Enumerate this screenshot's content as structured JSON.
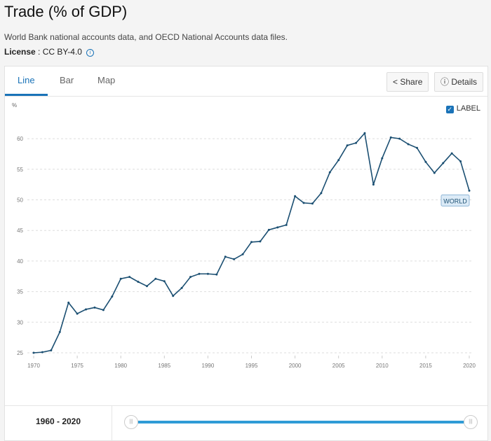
{
  "header": {
    "title": "Trade (% of GDP)",
    "source": "World Bank national accounts data, and OECD National Accounts data files.",
    "license_label": "License",
    "license_value": ": CC BY-4.0"
  },
  "tabs": [
    {
      "label": "Line"
    },
    {
      "label": "Bar"
    },
    {
      "label": "Map"
    }
  ],
  "buttons": {
    "share": "Share",
    "details": "Details"
  },
  "label_toggle": "LABEL",
  "footer": {
    "range": "1960 - 2020"
  },
  "colors": {
    "line": "#1b4f72",
    "accent": "#1a73b8"
  },
  "chart_data": {
    "type": "line",
    "title": "Trade (% of GDP)",
    "ylabel": "%",
    "xlabel": "",
    "ylim": [
      24,
      62
    ],
    "yticks": [
      25,
      30,
      35,
      40,
      45,
      50,
      55,
      60
    ],
    "xticks": [
      1970,
      1975,
      1980,
      1985,
      1990,
      1995,
      2000,
      2005,
      2010,
      2015,
      2020
    ],
    "series": [
      {
        "name": "WORLD",
        "x": [
          1970,
          1971,
          1972,
          1973,
          1974,
          1975,
          1976,
          1977,
          1978,
          1979,
          1980,
          1981,
          1982,
          1983,
          1984,
          1985,
          1986,
          1987,
          1988,
          1989,
          1990,
          1991,
          1992,
          1993,
          1994,
          1995,
          1996,
          1997,
          1998,
          1999,
          2000,
          2001,
          2002,
          2003,
          2004,
          2005,
          2006,
          2007,
          2008,
          2009,
          2010,
          2011,
          2012,
          2013,
          2014,
          2015,
          2016,
          2017,
          2018,
          2019,
          2020
        ],
        "values": [
          25.0,
          25.1,
          25.4,
          28.4,
          33.2,
          31.4,
          32.1,
          32.4,
          32.0,
          34.2,
          37.1,
          37.4,
          36.6,
          35.9,
          37.1,
          36.7,
          34.3,
          35.6,
          37.4,
          37.9,
          37.9,
          37.8,
          40.7,
          40.3,
          41.1,
          43.1,
          43.2,
          45.1,
          45.5,
          45.9,
          50.6,
          49.5,
          49.4,
          51.1,
          54.5,
          56.5,
          58.9,
          59.3,
          60.9,
          52.5,
          56.8,
          60.2,
          60.0,
          59.1,
          58.5,
          56.2,
          54.4,
          56.0,
          57.6,
          56.3,
          51.5
        ]
      }
    ],
    "grid": true
  }
}
